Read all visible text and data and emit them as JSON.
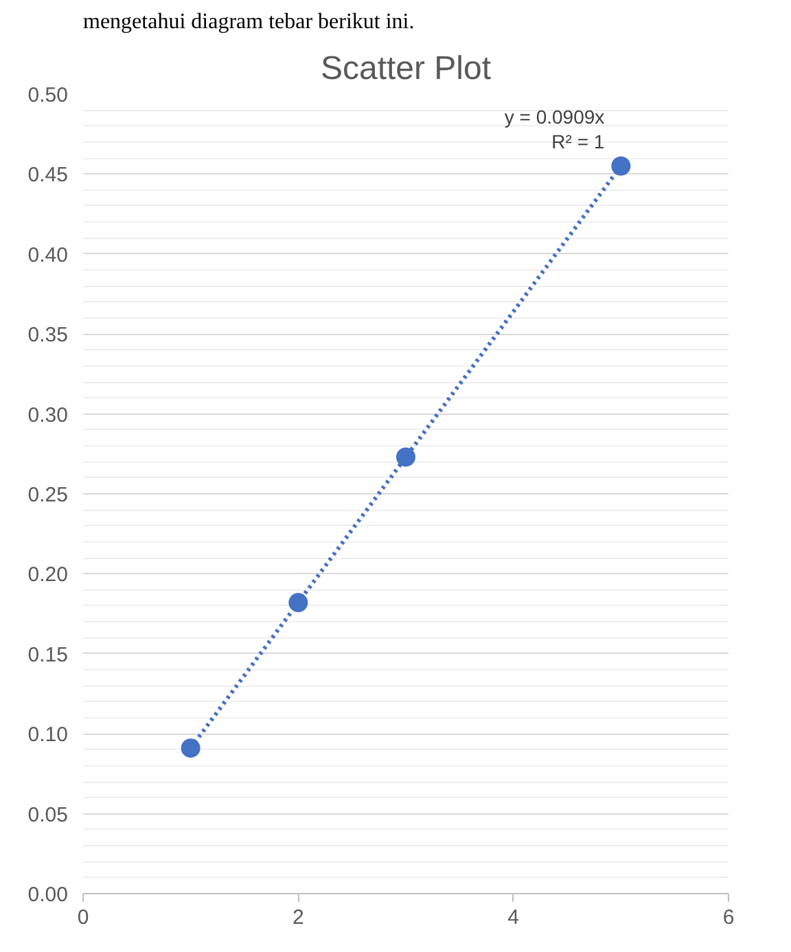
{
  "chart_data": {
    "type": "scatter",
    "title": "Scatter Plot",
    "x": [
      1,
      2,
      3,
      5
    ],
    "series": [
      {
        "color": "#4472c4",
        "values": [
          0.091,
          0.182,
          0.273,
          0.455
        ],
        "marker": "circle"
      },
      {
        "type": "line",
        "color": "#4472c4",
        "x": [
          1,
          5
        ],
        "values": [
          0.091,
          0.455
        ],
        "line_style": "dotted",
        "marker": "none"
      }
    ],
    "xlim": [
      0,
      6
    ],
    "xticks": [
      0,
      2,
      4,
      6
    ],
    "ylim": [
      0,
      0.5
    ],
    "yticks": [
      {
        "value": 0,
        "label": "0.00"
      },
      {
        "value": 0.05,
        "label": "0.05"
      },
      {
        "value": 0.1,
        "label": "0.10"
      },
      {
        "value": 0.15,
        "label": "0.15"
      },
      {
        "value": 0.2,
        "label": "0.20"
      },
      {
        "value": 0.25,
        "label": "0.25"
      },
      {
        "value": 0.3,
        "label": "0.30"
      },
      {
        "value": 0.35,
        "label": "0.35"
      },
      {
        "value": 0.4,
        "label": "0.40"
      },
      {
        "value": 0.45,
        "label": "0.45"
      },
      {
        "value": 0.5,
        "label": "0.50"
      }
    ],
    "grid": "y",
    "annotations": [
      "mengetahui diagram tebar berikut ini.",
      {
        "text": "y = 0.0909x",
        "x": 5,
        "y": 0.455
      },
      {
        "text": "R² = 1",
        "x": 5,
        "y": 0.455
      }
    ]
  }
}
